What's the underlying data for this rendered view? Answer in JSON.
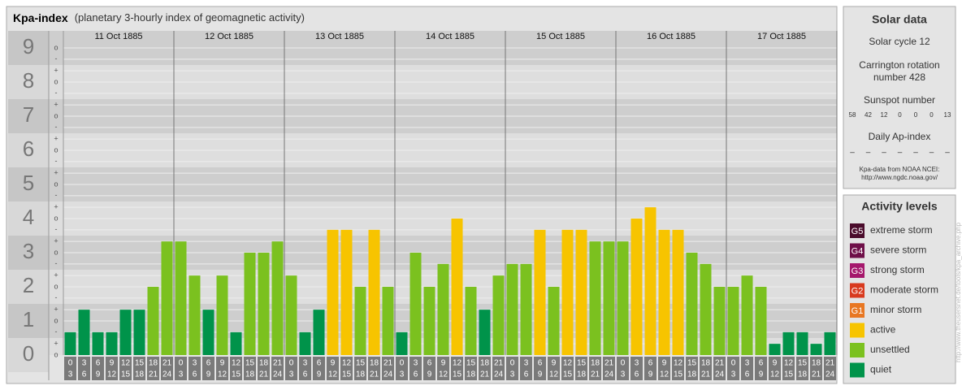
{
  "chart_data": {
    "type": "bar",
    "title": "Kpa-index",
    "subtitle": "(planetary 3-hourly index of geomagnetic activity)",
    "days": [
      "11 Oct 1885",
      "12 Oct 1885",
      "13 Oct 1885",
      "14 Oct 1885",
      "15 Oct 1885",
      "16 Oct 1885",
      "17 Oct 1885"
    ],
    "slot_labels": [
      [
        "0",
        "3"
      ],
      [
        "3",
        "6"
      ],
      [
        "6",
        "9"
      ],
      [
        "9",
        "12"
      ],
      [
        "12",
        "15"
      ],
      [
        "15",
        "18"
      ],
      [
        "18",
        "21"
      ],
      [
        "21",
        "24"
      ]
    ],
    "values": [
      0.67,
      1.33,
      0.67,
      0.67,
      1.33,
      1.33,
      2,
      3.33,
      3.33,
      2.33,
      1.33,
      2.33,
      0.67,
      3,
      3,
      3.33,
      2.33,
      0.67,
      1.33,
      3.67,
      3.67,
      2,
      3.67,
      2,
      0.67,
      3,
      2,
      2.67,
      4,
      2,
      1.33,
      2.33,
      2.67,
      2.67,
      3.67,
      2,
      3.67,
      3.67,
      3.33,
      3.33,
      3.33,
      4,
      4.33,
      3.67,
      3.67,
      3,
      2.67,
      2,
      2,
      2.33,
      2,
      0.33,
      0.67,
      0.67,
      0.33,
      0.67
    ],
    "colors": [
      "#00934a",
      "#00934a",
      "#00934a",
      "#00934a",
      "#00934a",
      "#00934a",
      "#7bc11f",
      "#7bc11f",
      "#7bc11f",
      "#7bc11f",
      "#00934a",
      "#7bc11f",
      "#00934a",
      "#7bc11f",
      "#7bc11f",
      "#7bc11f",
      "#7bc11f",
      "#00934a",
      "#00934a",
      "#f7c400",
      "#f7c400",
      "#7bc11f",
      "#f7c400",
      "#7bc11f",
      "#00934a",
      "#7bc11f",
      "#7bc11f",
      "#7bc11f",
      "#f7c400",
      "#7bc11f",
      "#00934a",
      "#7bc11f",
      "#7bc11f",
      "#7bc11f",
      "#f7c400",
      "#7bc11f",
      "#f7c400",
      "#f7c400",
      "#7bc11f",
      "#7bc11f",
      "#7bc11f",
      "#f7c400",
      "#f7c400",
      "#f7c400",
      "#f7c400",
      "#7bc11f",
      "#7bc11f",
      "#7bc11f",
      "#7bc11f",
      "#7bc11f",
      "#7bc11f",
      "#00934a",
      "#00934a",
      "#00934a",
      "#00934a",
      "#00934a"
    ],
    "ylim": [
      0,
      9.5
    ],
    "yticks": [
      0,
      1,
      2,
      3,
      4,
      5,
      6,
      7,
      8,
      9
    ],
    "minor_ticks": [
      {
        "value": 0,
        "label": "o"
      },
      {
        "value": 0.33,
        "label": "+"
      },
      {
        "value": 0.67,
        "label": "-"
      },
      {
        "value": 1,
        "label": "o"
      },
      {
        "value": 1.33,
        "label": "+"
      },
      {
        "value": 1.67,
        "label": "-"
      },
      {
        "value": 2,
        "label": "o"
      },
      {
        "value": 2.33,
        "label": "+"
      },
      {
        "value": 2.67,
        "label": "-"
      },
      {
        "value": 3,
        "label": "o"
      },
      {
        "value": 3.33,
        "label": "+"
      },
      {
        "value": 3.67,
        "label": "-"
      },
      {
        "value": 4,
        "label": "o"
      },
      {
        "value": 4.33,
        "label": "+"
      },
      {
        "value": 4.67,
        "label": "-"
      },
      {
        "value": 5,
        "label": "o"
      },
      {
        "value": 5.33,
        "label": "+"
      },
      {
        "value": 5.67,
        "label": "-"
      },
      {
        "value": 6,
        "label": "o"
      },
      {
        "value": 6.33,
        "label": "+"
      },
      {
        "value": 6.67,
        "label": "-"
      },
      {
        "value": 7,
        "label": "o"
      },
      {
        "value": 7.33,
        "label": "+"
      },
      {
        "value": 7.67,
        "label": "-"
      },
      {
        "value": 8,
        "label": "o"
      },
      {
        "value": 8.33,
        "label": "+"
      },
      {
        "value": 8.67,
        "label": "-"
      },
      {
        "value": 9,
        "label": "o"
      }
    ],
    "legend_title": "Activity levels",
    "legend": [
      {
        "badge": "G5",
        "name": "extreme storm",
        "color": "#4b0c2c"
      },
      {
        "badge": "G4",
        "name": "severe storm",
        "color": "#6e0f48"
      },
      {
        "badge": "G3",
        "name": "strong storm",
        "color": "#a5186c"
      },
      {
        "badge": "G2",
        "name": "moderate storm",
        "color": "#d83a1e"
      },
      {
        "badge": "G1",
        "name": "minor storm",
        "color": "#e87722"
      },
      {
        "name": "active",
        "color": "#f7c400"
      },
      {
        "name": "unsettled",
        "color": "#7bc11f"
      },
      {
        "name": "quiet",
        "color": "#00934a"
      }
    ]
  },
  "solar": {
    "title": "Solar data",
    "cycle": "Solar cycle 12",
    "carrington": [
      "Carrington rotation",
      "number 428"
    ],
    "sunspot_title": "Sunspot number",
    "sunspots": [
      58,
      42,
      12,
      0,
      0,
      0,
      13
    ],
    "ap_title": "Daily Ap-index",
    "ap": [
      "–",
      "–",
      "–",
      "–",
      "–",
      "–",
      "–"
    ],
    "source": [
      "Kpa-data from NOAA NCEI:",
      "http://www.ngdc.noaa.gov/"
    ]
  },
  "side_url": "http://www.theusersnet.de/tools/kpa_archive.php"
}
